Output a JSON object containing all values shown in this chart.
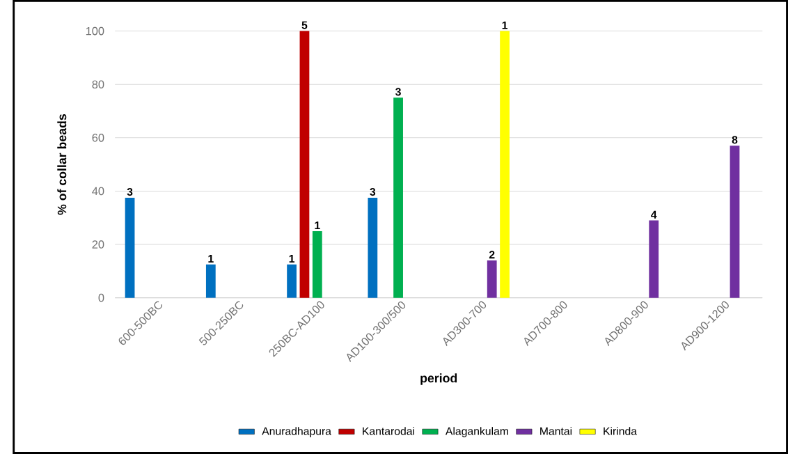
{
  "chart_data": {
    "type": "bar",
    "xlabel": "period",
    "ylabel": "% of collar beads",
    "categories": [
      "600-500BC",
      "500-250BC",
      "250BC-AD100",
      "AD100-300/500",
      "AD300-700",
      "AD700-800",
      "AD800-900",
      "AD900-1200"
    ],
    "ylim": [
      0,
      100
    ],
    "yticks": [
      0,
      20,
      40,
      60,
      80,
      100
    ],
    "grid": "y",
    "legend": "bottom",
    "series": [
      {
        "name": "Anuradhapura",
        "color": "#0070c0",
        "values": [
          37.5,
          12.5,
          12.5,
          37.5,
          null,
          null,
          null,
          null
        ]
      },
      {
        "name": "Kantarodai",
        "color": "#c00000",
        "values": [
          null,
          null,
          100,
          null,
          null,
          null,
          null,
          null
        ]
      },
      {
        "name": "Alagankulam",
        "color": "#00b050",
        "values": [
          null,
          null,
          25,
          75,
          null,
          null,
          null,
          null
        ]
      },
      {
        "name": "Mantai",
        "color": "#7030a0",
        "values": [
          null,
          null,
          null,
          null,
          14,
          null,
          29,
          57
        ]
      },
      {
        "name": "Kirinda",
        "color": "#ffff00",
        "values": [
          null,
          null,
          null,
          null,
          100,
          null,
          null,
          null
        ]
      }
    ],
    "annotations": [
      "3",
      "1",
      "1",
      "5",
      "1",
      "3",
      "3",
      "2",
      "1",
      "4",
      "8"
    ]
  }
}
